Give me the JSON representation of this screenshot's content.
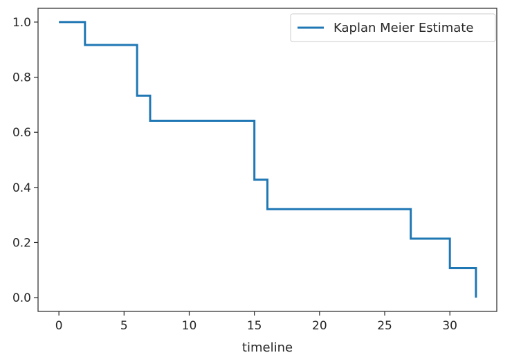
{
  "chart_data": {
    "type": "line",
    "step": "post",
    "title": "",
    "xlabel": "timeline",
    "ylabel": "",
    "xlim": [
      -1.6,
      33.6
    ],
    "ylim": [
      -0.05,
      1.05
    ],
    "xticks": [
      0,
      5,
      10,
      15,
      20,
      25,
      30
    ],
    "xtick_labels": [
      "0",
      "5",
      "10",
      "15",
      "20",
      "25",
      "30"
    ],
    "yticks": [
      0.0,
      0.2,
      0.4,
      0.6,
      0.8,
      1.0
    ],
    "ytick_labels": [
      "0.0",
      "0.2",
      "0.4",
      "0.6",
      "0.8",
      "1.0"
    ],
    "grid": false,
    "legend_position": "top-right",
    "series": [
      {
        "name": "Kaplan Meier Estimate",
        "color": "#1f77b4",
        "x": [
          0,
          2,
          6,
          7,
          15,
          16,
          27,
          30,
          32
        ],
        "y": [
          1.0,
          0.917,
          0.733,
          0.642,
          0.428,
          0.321,
          0.214,
          0.107,
          0.0
        ]
      }
    ]
  }
}
